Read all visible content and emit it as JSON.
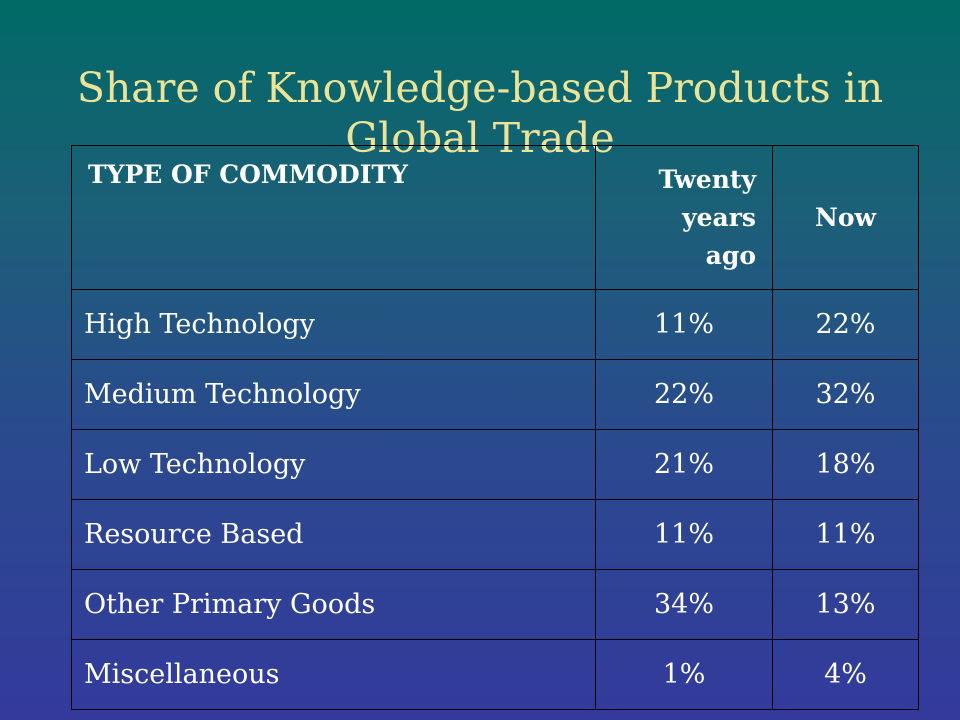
{
  "title_line1": "Share of Knowledge-based Products in",
  "title_line2": "Global Trade",
  "table": {
    "headers": {
      "commodity": "TYPE OF COMMODITY",
      "twenty_line1": "Twenty",
      "twenty_line2": "years",
      "twenty_line3": "ago",
      "now": "Now"
    },
    "rows": [
      {
        "name": "High Technology",
        "twenty_years_ago": "11%",
        "now": "22%"
      },
      {
        "name": "Medium Technology",
        "twenty_years_ago": "22%",
        "now": "32%"
      },
      {
        "name": "Low Technology",
        "twenty_years_ago": "21%",
        "now": "18%"
      },
      {
        "name": "Resource Based",
        "twenty_years_ago": "11%",
        "now": "11%"
      },
      {
        "name": "Other Primary Goods",
        "twenty_years_ago": "34%",
        "now": "13%"
      },
      {
        "name": "Miscellaneous",
        "twenty_years_ago": "1%",
        "now": "4%"
      }
    ]
  },
  "colors": {
    "background_top": "#006a66",
    "background_bottom": "#333a9c",
    "title_text": "#ece396",
    "table_text": "#ffffff",
    "table_border": "#000000"
  }
}
